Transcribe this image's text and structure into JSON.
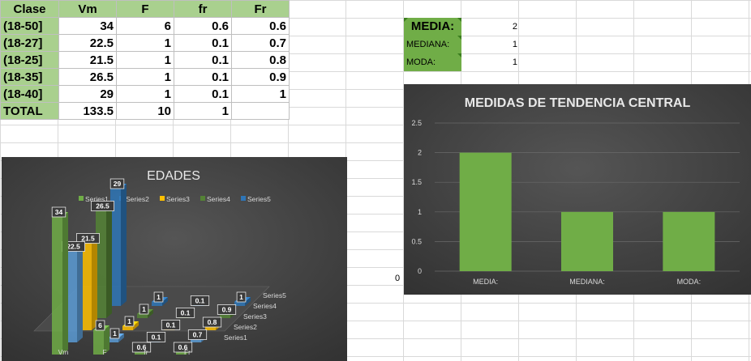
{
  "table": {
    "headers": [
      "Clase",
      "Vm",
      "F",
      "fr",
      "Fr"
    ],
    "rows": [
      {
        "clase": "(18-50]",
        "vm": "34",
        "f": "6",
        "fr": "0.6",
        "Fr": "0.6"
      },
      {
        "clase": "(18-27]",
        "vm": "22.5",
        "f": "1",
        "fr": "0.1",
        "Fr": "0.7"
      },
      {
        "clase": "(18-25]",
        "vm": "21.5",
        "f": "1",
        "fr": "0.1",
        "Fr": "0.8"
      },
      {
        "clase": "(18-35]",
        "vm": "26.5",
        "f": "1",
        "fr": "0.1",
        "Fr": "0.9"
      },
      {
        "clase": "(18-40]",
        "vm": "29",
        "f": "1",
        "fr": "0.1",
        "Fr": "1"
      }
    ],
    "total": {
      "clase": "TOTAL",
      "vm": "133.5",
      "f": "10",
      "fr": "1"
    }
  },
  "stats": [
    {
      "label": "MEDIA:",
      "value": "2"
    },
    {
      "label": "MEDIANA:",
      "value": "1"
    },
    {
      "label": "MODA:",
      "value": "1"
    }
  ],
  "stray_cell": "0",
  "chart_data": [
    {
      "type": "bar",
      "title": "EDADES",
      "categories": [
        "Vm",
        "F",
        "fr",
        "Fr"
      ],
      "series": [
        {
          "name": "Series1",
          "values": [
            34,
            6,
            0.6,
            0.6
          ]
        },
        {
          "name": "Series2",
          "values": [
            22.5,
            1,
            0.1,
            0.7
          ]
        },
        {
          "name": "Series3",
          "values": [
            21.5,
            1,
            0.1,
            0.8
          ]
        },
        {
          "name": "Series4",
          "values": [
            26.5,
            1,
            0.1,
            0.9
          ]
        },
        {
          "name": "Series5",
          "values": [
            29,
            1,
            0.1,
            1
          ]
        }
      ],
      "legend": "top",
      "colors": [
        "#70ad47",
        "#5b9bd5",
        "#ffc000",
        "#548235",
        "#2e75b6"
      ],
      "style": "3d-column"
    },
    {
      "type": "bar",
      "title": "MEDIDAS DE TENDENCIA CENTRAL",
      "categories": [
        "MEDIA:",
        "MEDIANA:",
        "MODA:"
      ],
      "values": [
        2,
        1,
        1
      ],
      "ylim": [
        0,
        2.5
      ],
      "yticks": [
        "0",
        "0.5",
        "1",
        "1.5",
        "2",
        "2.5"
      ],
      "grid": true,
      "color": "#70ad47"
    }
  ]
}
